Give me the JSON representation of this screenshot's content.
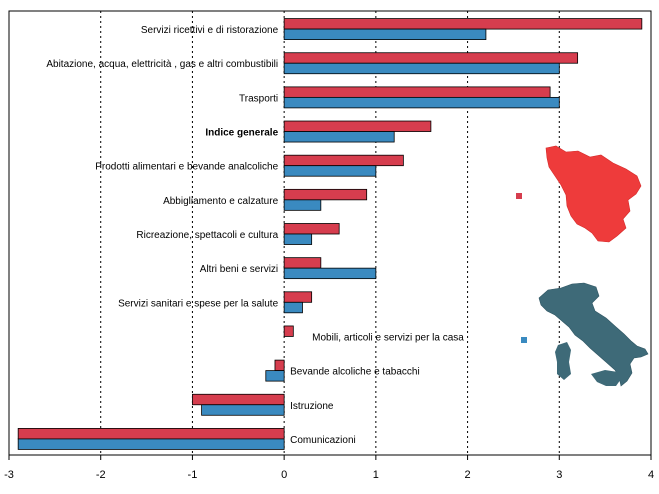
{
  "chart_data": {
    "type": "bar",
    "orientation": "horizontal",
    "title": "",
    "xlabel": "",
    "ylabel": "",
    "xlim": [
      -3,
      4
    ],
    "xticks": [
      "-3",
      "-2",
      "-1",
      "0",
      "1",
      "2",
      "3",
      "4"
    ],
    "grid": "vertical dashed",
    "legend": "map insets: Tuscany (red) and Italy (blue)",
    "colors": {
      "series1": "#d63d4e",
      "series2": "#3a8ac0",
      "map_tuscany": "#ee3b3b",
      "map_italy": "#3e6a78"
    },
    "categories": [
      "Servizi ricettivi e di ristorazione",
      "Abitazione, acqua, elettricità , gas e altri combustibili",
      "Trasporti",
      "Indice generale",
      "Prodotti alimentari e bevande analcoliche",
      "Abbigliamento e calzature",
      "Ricreazione, spettacoli e cultura",
      "Altri beni e servizi",
      "Servizi sanitari e spese per la salute",
      "Mobili, articoli e servizi per la casa",
      "Bevande alcoliche e tabacchi",
      "Istruzione",
      "Comunicazioni"
    ],
    "bold_category": "Indice generale",
    "series": [
      {
        "values": [
          3.9,
          3.2,
          2.9,
          1.6,
          1.3,
          0.9,
          0.6,
          0.4,
          0.3,
          0.1,
          -0.1,
          -1.0,
          -2.9
        ]
      },
      {
        "values": [
          2.2,
          3.0,
          3.0,
          1.2,
          1.0,
          0.4,
          0.3,
          1.0,
          0.2,
          0.0,
          -0.2,
          -0.9,
          -2.9
        ]
      }
    ]
  }
}
